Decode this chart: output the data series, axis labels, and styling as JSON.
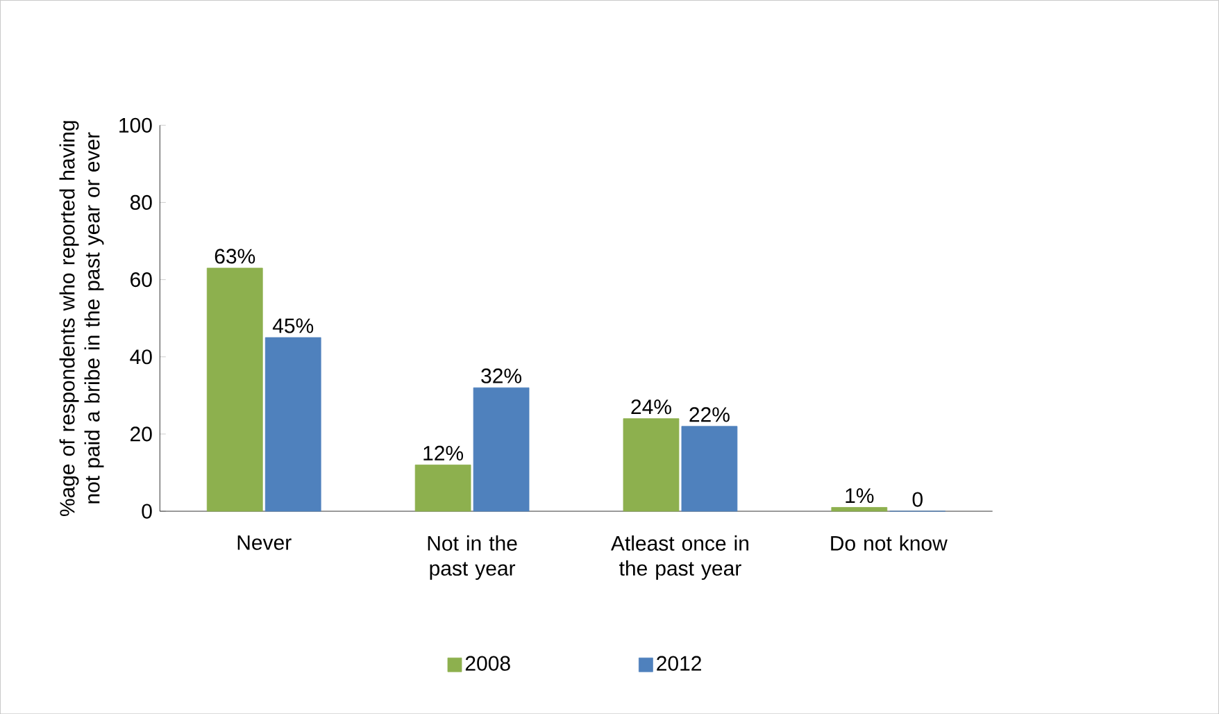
{
  "chart_data": {
    "type": "bar",
    "ylabel": "%age of respondents who reported having not paid a bribe in the past year or ever",
    "categories": [
      "Never",
      "Not in the past year",
      "Atleast once in the past year",
      "Do not know"
    ],
    "series": [
      {
        "name": "2008",
        "color": "#8db04e",
        "values": [
          63,
          12,
          24,
          1
        ],
        "value_labels": [
          "63%",
          "12%",
          "24%",
          "1%"
        ]
      },
      {
        "name": "2012",
        "color": "#4f81bd",
        "values": [
          45,
          32,
          22,
          0
        ],
        "value_labels": [
          "45%",
          "32%",
          "22%",
          "0"
        ]
      }
    ],
    "ylim": [
      0,
      100
    ],
    "yticks": [
      0,
      20,
      40,
      60,
      80,
      100
    ],
    "grid": false,
    "legend": "bottom"
  }
}
